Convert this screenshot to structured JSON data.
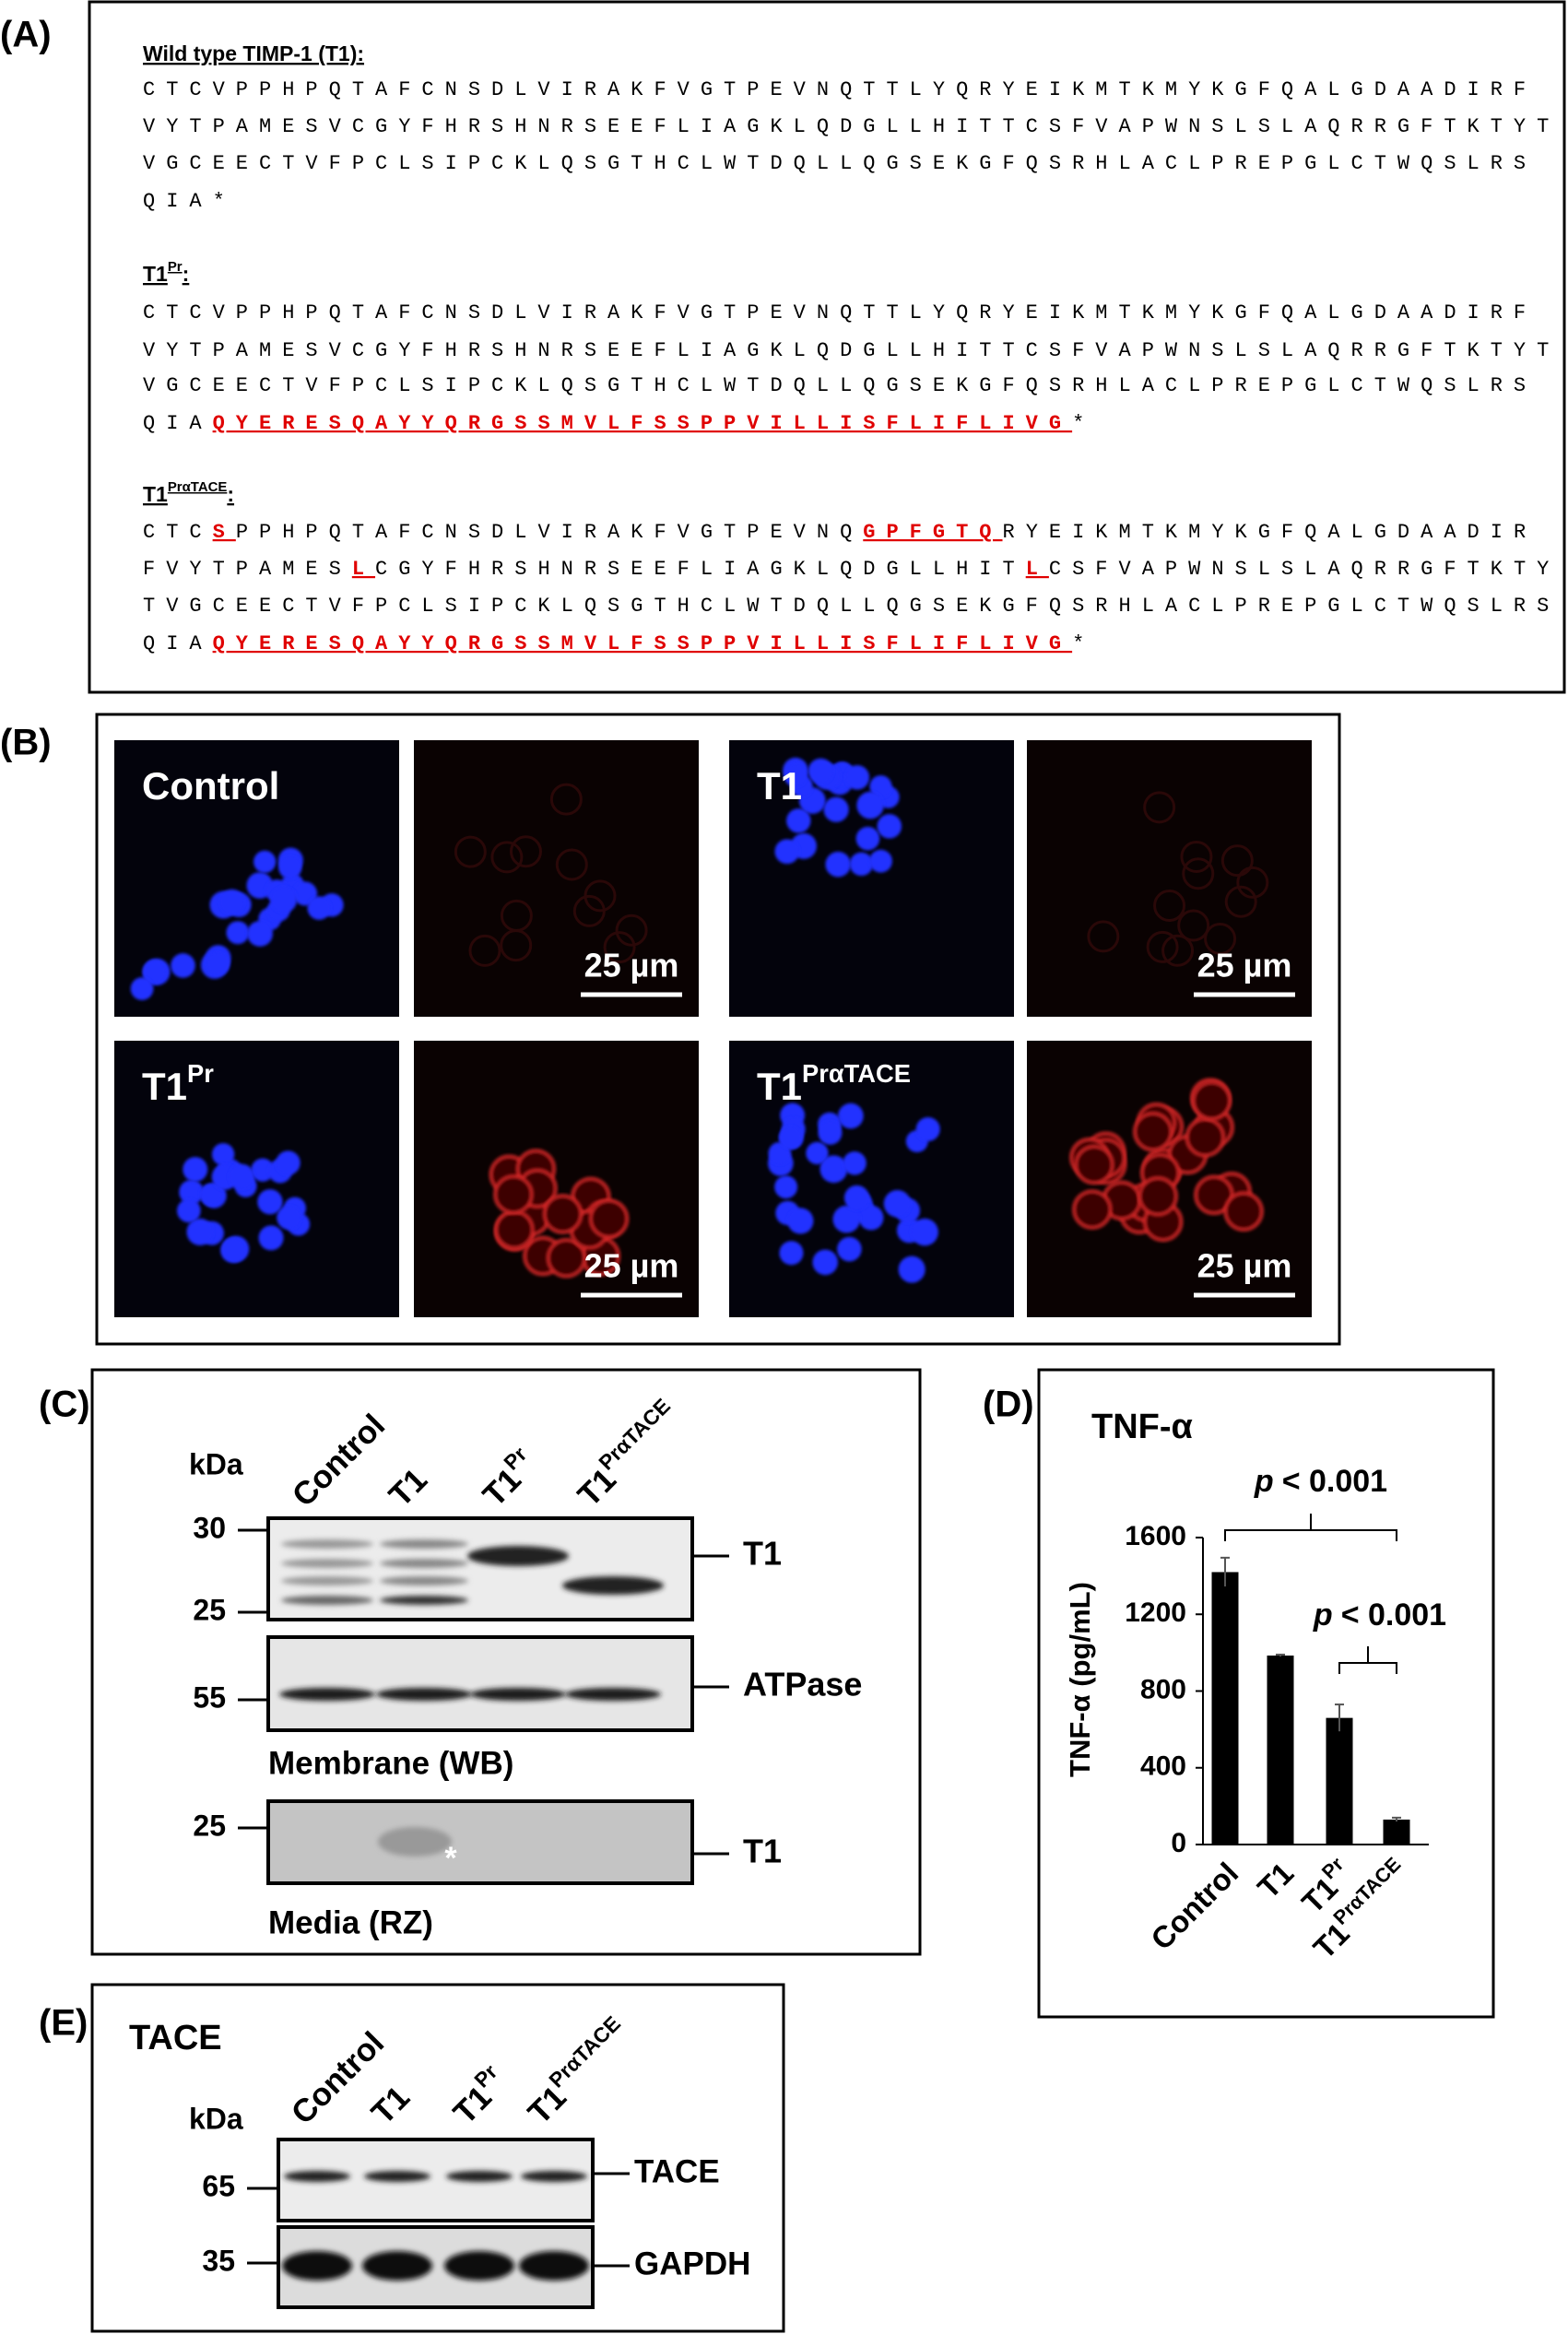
{
  "panel_a": {
    "label": "(A)",
    "sections": [
      {
        "title": "Wild type TIMP-1 (T1):",
        "lines": [
          [
            "CTCVPPHPQTAFCNSDLVIRAKFVGTPEVNQTTLYQRYEIKMTKMYKGFQALGDAADIRF"
          ],
          [
            "VYTPAMESVCGYFHRSHNRSEEFLIAGKLQDGLLHITTCSFVAPWNSLSLAQRRGFTKTYT"
          ],
          [
            "VGCEECTVFPCLSIPCKLQSGTHCLWTDQLLQGSEKGFQSRHLACLPREPGLCTWQSLRS"
          ],
          [
            "QIA*"
          ]
        ]
      },
      {
        "title": {
          "text": "T1",
          "sup": "Pr",
          "suffix": ":"
        },
        "lines": [
          [
            "CTCVPPHPQTAFCNSDLVIRAKFVGTPEVNQTTLYQRYEIKMTKMYKGFQALGDAADIRF"
          ],
          [
            "VYTPAMESVCGYFHRSHNRSEEFLIAGKLQDGLLHITTCSFVAPWNSLSLAQRRGFTKTYT"
          ],
          [
            "VGCEECTVFPCLSIPCKLQSGTHCLWTDQLLQGSEKGFQSRHLACLPREPGLCTWQSLRS"
          ],
          [
            "QIA",
            {
              "text": "QYERESQAYYQRGSSMVLFSSPPVILLISFLIFLIVG",
              "color": "#e00000"
            },
            "*"
          ]
        ]
      },
      {
        "title": {
          "text": "T1",
          "sup": "PrαTACE",
          "suffix": ":"
        },
        "lines": [
          [
            "CTC",
            {
              "text": "S",
              "color": "#e00000"
            },
            "PPHPQTAFCNSDLVIRAKFVGTPEVNQ",
            {
              "text": "GPFGTQ",
              "color": "#e00000"
            },
            "RYEIKMTKMYKGFQALGDAADIR"
          ],
          [
            "FVYTPAMES",
            {
              "text": "L",
              "color": "#e00000"
            },
            "CGYFHRSHNRSEEFLIAGKLQDGLLHIT",
            {
              "text": "L",
              "color": "#e00000"
            },
            "CSFVAPWNSLSLAQRRGFTKTY"
          ],
          [
            "TVGCEECTVFPCLSIPCKLQSGTHCLWTDQLLQGSEKGFQSRHLACLPREPGLCTWQSLRS"
          ],
          [
            "QIA",
            {
              "text": "QYERESQAYYQRGSSMVLFSSPPVILLISFLIFLIVG",
              "color": "#e00000"
            },
            "*"
          ]
        ]
      }
    ]
  },
  "panel_b": {
    "label": "(B)",
    "images": [
      {
        "label": "Control"
      },
      {
        "scale_bar": "25 µm"
      },
      {
        "label": "T1"
      },
      {
        "scale_bar": "25 µm"
      },
      {
        "label": {
          "text": "T1",
          "sup": "Pr"
        }
      },
      {
        "scale_bar": "25 µm"
      },
      {
        "label": {
          "text": "T1",
          "sup": "PrαTACE"
        }
      },
      {
        "scale_bar": "25 µm"
      }
    ]
  },
  "panel_c": {
    "label": "(C)",
    "lanes": [
      "Control",
      "T1",
      {
        "text": "T1",
        "sup": "Pr"
      },
      {
        "text": "T1",
        "sup": "PrαTACE"
      }
    ],
    "kda": "kDa",
    "markers": [
      30,
      25,
      55,
      25
    ],
    "blot_labels": [
      "T1",
      "ATPase",
      "T1"
    ],
    "fractions": [
      "Membrane (WB)",
      "Media (RZ)"
    ],
    "asterisk": "*"
  },
  "chart_data": {
    "type": "bar",
    "label": "(D)",
    "title": "TNF-α",
    "y_label": "TNF-α (pg/mL)",
    "categories": [
      "Control",
      "T1",
      "T1",
      "T1"
    ],
    "category_superscripts": [
      null,
      null,
      "Pr",
      "PrαTACE"
    ],
    "values": [
      1420,
      985,
      660,
      130
    ],
    "errors": [
      75,
      5,
      70,
      10
    ],
    "color": "#000000",
    "ylim": [
      0,
      1600
    ],
    "yticks": [
      0,
      400,
      800,
      1200,
      1600
    ],
    "grid": false,
    "annotations": [
      {
        "italic": "p",
        "text": "< 0.001"
      },
      {
        "italic": "p",
        "text": "< 0.001"
      }
    ]
  },
  "panel_e": {
    "label": "(E)",
    "title": "TACE",
    "lanes": [
      "Control",
      "T1",
      {
        "text": "T1",
        "sup": "Pr"
      },
      {
        "text": "T1",
        "sup": "PrαTACE"
      }
    ],
    "kda": "kDa",
    "markers": [
      65,
      35
    ],
    "blot_labels": [
      "TACE",
      "GAPDH"
    ]
  }
}
